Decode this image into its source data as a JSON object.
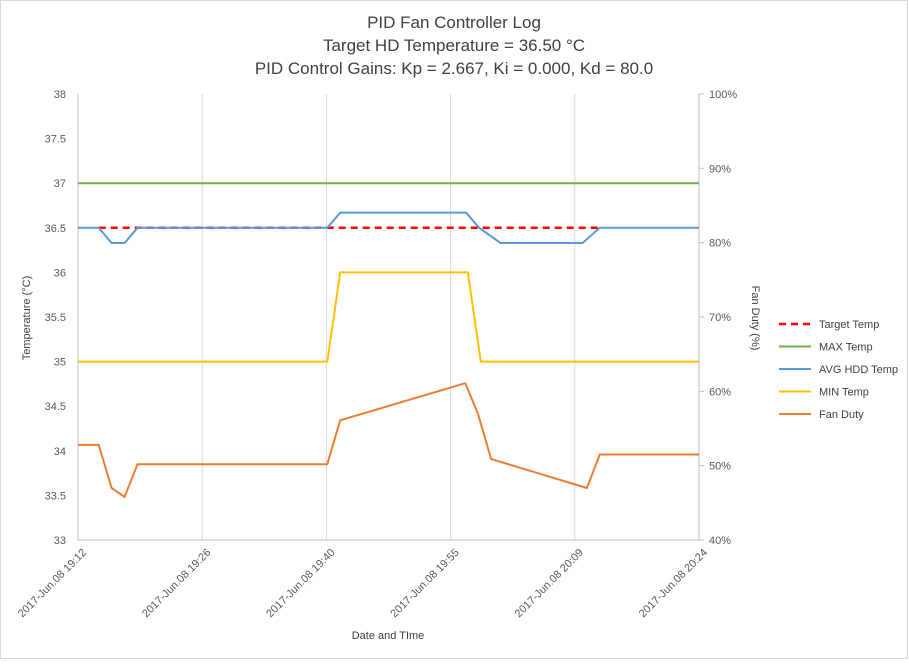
{
  "chart_data": {
    "type": "line",
    "title_lines": [
      "PID Fan Controller Log",
      "Target HD Temperature = 36.50 °C",
      "PID Control Gains: Kp =   2.667, Ki =  0.000, Kd = 80.0"
    ],
    "xlabel": "Date and TIme",
    "ylabel": "Temperature  (°C)",
    "y2label": "Fan Duty (%)",
    "ylim": [
      33,
      38
    ],
    "y_ticks": [
      "33",
      "33.5",
      "34",
      "34.5",
      "35",
      "35.5",
      "36",
      "36.5",
      "37",
      "37.5",
      "38"
    ],
    "y2lim": [
      40,
      100
    ],
    "y2_ticks": [
      "40%",
      "50%",
      "60%",
      "70%",
      "80%",
      "90%",
      "100%"
    ],
    "x_ticks": [
      "2017-Jun.08 19:12",
      "2017-Jun.08 19:26",
      "2017-Jun.08 19:40",
      "2017-Jun.08 19:55",
      "2017-Jun.08 20:09",
      "2017-Jun.08 20:24"
    ],
    "x_range_minutes": [
      0,
      72
    ],
    "vertical_grid": true,
    "horizontal_grid": false,
    "legend_position": "right",
    "series": [
      {
        "name": "Target Temp",
        "axis": "left",
        "color": "#ff0000",
        "dashed": true,
        "points": [
          [
            2.4,
            36.5
          ],
          [
            33,
            36.5
          ],
          [
            50.5,
            36.5
          ],
          [
            60.5,
            36.5
          ]
        ]
      },
      {
        "name": "MAX Temp",
        "axis": "left",
        "color": "#70ad47",
        "dashed": false,
        "points": [
          [
            0,
            37.0
          ],
          [
            72,
            37.0
          ]
        ]
      },
      {
        "name": "AVG HDD Temp",
        "axis": "left",
        "color": "#5b9bd5",
        "dashed": false,
        "points": [
          [
            0,
            36.5
          ],
          [
            2.4,
            36.5
          ],
          [
            3.9,
            36.33
          ],
          [
            5.4,
            36.33
          ],
          [
            6.9,
            36.5
          ],
          [
            28.9,
            36.5
          ],
          [
            30.4,
            36.67
          ],
          [
            45,
            36.67
          ],
          [
            46.5,
            36.5
          ],
          [
            49,
            36.33
          ],
          [
            58.5,
            36.33
          ],
          [
            60.5,
            36.5
          ],
          [
            72,
            36.5
          ]
        ]
      },
      {
        "name": "MIN Temp",
        "axis": "left",
        "color": "#ffc000",
        "dashed": false,
        "points": [
          [
            0,
            35.0
          ],
          [
            28.9,
            35.0
          ],
          [
            30.4,
            36.0
          ],
          [
            45.2,
            36.0
          ],
          [
            46.7,
            35.0
          ],
          [
            72,
            35.0
          ]
        ]
      },
      {
        "name": "Fan Duty",
        "axis": "right",
        "color": "#ed7d31",
        "dashed": false,
        "points": [
          [
            0,
            52.8
          ],
          [
            2.4,
            52.8
          ],
          [
            3.9,
            47.0
          ],
          [
            5.4,
            45.8
          ],
          [
            6.9,
            50.2
          ],
          [
            28.9,
            50.2
          ],
          [
            30.4,
            56.1
          ],
          [
            44.9,
            61.1
          ],
          [
            46.4,
            56.9
          ],
          [
            47.9,
            50.9
          ],
          [
            59,
            47.0
          ],
          [
            60.5,
            51.5
          ],
          [
            72,
            51.5
          ]
        ]
      }
    ]
  }
}
